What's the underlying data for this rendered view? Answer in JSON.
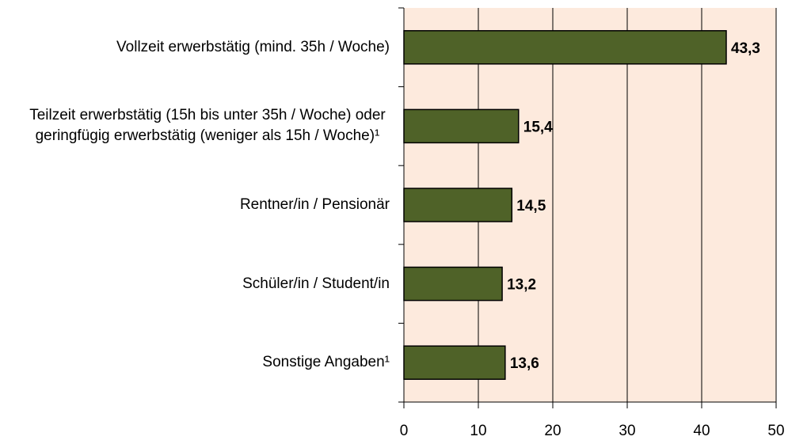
{
  "chart_data": {
    "type": "bar",
    "orientation": "horizontal",
    "categories": [
      "Vollzeit erwerbstätig (mind. 35h / Woche)",
      "Teilzeit erwerbstätig (15h bis unter 35h / Woche) oder geringfügig erwerbstätig (weniger als 15h / Woche)¹",
      "Rentner/in / Pensionär",
      "Schüler/in / Student/in",
      "Sonstige Angaben¹"
    ],
    "values": [
      43.3,
      15.4,
      14.5,
      13.2,
      13.6
    ],
    "value_labels": [
      "43,3",
      "15,4",
      "14,5",
      "13,2",
      "13,6"
    ],
    "color": "#4f6228",
    "xlim": [
      0,
      50
    ],
    "xticks": [
      0,
      10,
      20,
      30,
      40,
      50
    ],
    "grid": true
  }
}
